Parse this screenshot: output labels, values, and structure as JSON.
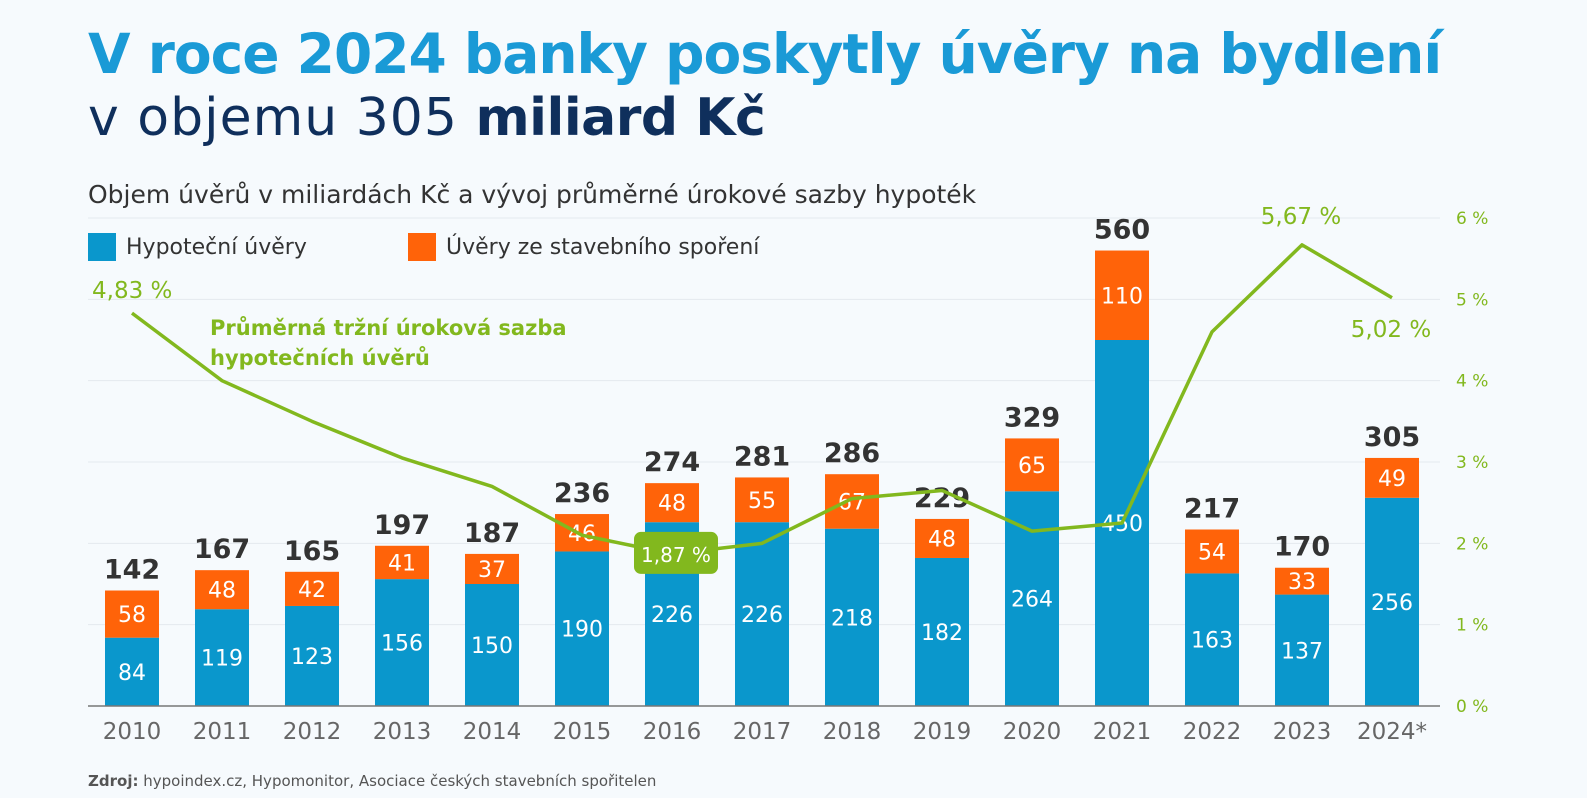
{
  "title": {
    "line1": "V roce 2024 banky poskytly úvěry na bydlení",
    "line2_normal": "v objemu 305 ",
    "line2_bold": "miliard Kč"
  },
  "subtitle": "Objem úvěrů v miliardách Kč a vývoj průměrné úrokové sazby hypoték",
  "source": {
    "label": "Zdroj:",
    "text": " hypoindex.cz, Hypomonitor, Asociace českých stavebních spořitelen"
  },
  "colors": {
    "mortgage": "#0a97cc",
    "savings": "#ff6309",
    "rate": "#82b81e",
    "total_label": "#333333",
    "axis": "#666666"
  },
  "chart_data": {
    "type": "bar",
    "stacked": true,
    "categories": [
      "2010",
      "2011",
      "2012",
      "2013",
      "2014",
      "2015",
      "2016",
      "2017",
      "2018",
      "2019",
      "2020",
      "2021",
      "2022",
      "2023",
      "2024*"
    ],
    "series": [
      {
        "name": "Hypoteční úvěry",
        "values": [
          84,
          119,
          123,
          156,
          150,
          190,
          226,
          226,
          218,
          182,
          264,
          450,
          163,
          137,
          256
        ]
      },
      {
        "name": "Úvěry ze stavebního spoření",
        "values": [
          58,
          48,
          42,
          41,
          37,
          46,
          48,
          55,
          67,
          48,
          65,
          110,
          54,
          33,
          49
        ]
      }
    ],
    "totals": [
      142,
      167,
      165,
      197,
      187,
      236,
      274,
      281,
      286,
      229,
      329,
      560,
      217,
      170,
      305
    ],
    "ylim": [
      0,
      600
    ],
    "line_series": {
      "name": "Průměrná tržní úroková sazba hypotečních úvěrů",
      "name_line1": "Průměrná tržní úroková sazba",
      "name_line2": "hypotečních úvěrů",
      "values": [
        4.83,
        4.0,
        3.5,
        3.05,
        2.7,
        2.1,
        1.87,
        2.0,
        2.55,
        2.65,
        2.15,
        2.25,
        4.6,
        5.67,
        5.02
      ],
      "axis": "right",
      "ylim": [
        0,
        6
      ],
      "ticks": [
        "0 %",
        "1 %",
        "2 %",
        "3 %",
        "4 %",
        "5 %",
        "6 %"
      ],
      "annotations": [
        {
          "index": 0,
          "text": "4,83 %"
        },
        {
          "index": 6,
          "text": "1,87 %"
        },
        {
          "index": 13,
          "text": "5,67 %"
        },
        {
          "index": 14,
          "text": "5,02 %"
        }
      ]
    },
    "grid": true,
    "legend": "top-left"
  }
}
